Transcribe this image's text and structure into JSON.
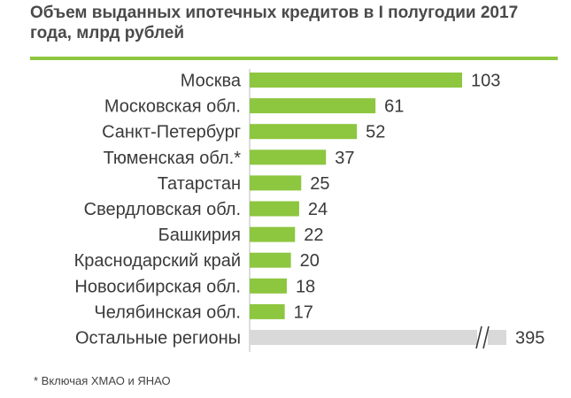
{
  "title": "Объем выданных ипотечных кредитов в I полугодии 2017 года, млрд рублей",
  "footnote": "* Включая ХМАО и ЯНАО",
  "colors": {
    "bar": "#8dc63f",
    "other_bar": "#d9d9d9",
    "accent_rule": "#8dc63f",
    "break_mark": "#3a3a3a"
  },
  "chart_data": {
    "type": "bar",
    "orientation": "horizontal",
    "title": "Объем выданных ипотечных кредитов в I полугодии 2017 года, млрд рублей",
    "xlabel": "",
    "ylabel": "",
    "xlim": [
      0,
      110
    ],
    "grid": false,
    "categories": [
      "Москва",
      "Московская обл.",
      "Санкт-Петербург",
      "Тюменская обл.*",
      "Татарстан",
      "Свердловская обл.",
      "Башкирия",
      "Краснодарский край",
      "Новосибирская обл.",
      "Челябинская обл.",
      "Остальные регионы"
    ],
    "values": [
      103,
      61,
      52,
      37,
      25,
      24,
      22,
      20,
      18,
      17,
      395
    ],
    "value_labels": [
      "103",
      "61",
      "52",
      "37",
      "25",
      "24",
      "22",
      "20",
      "18",
      "17",
      "395"
    ],
    "axis_break_category": "Остальные регионы"
  }
}
